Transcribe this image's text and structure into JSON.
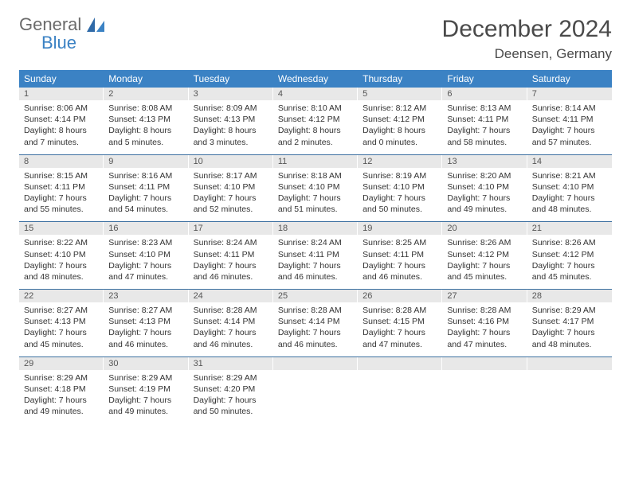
{
  "logo": {
    "general": "General",
    "blue": "Blue"
  },
  "title": "December 2024",
  "location": "Deensen, Germany",
  "colors": {
    "header_bg": "#3b82c4",
    "daynum_bg": "#e8e8e8",
    "week_divider": "#3b6fa0",
    "text": "#333333",
    "title_text": "#4a4a4a"
  },
  "dow": [
    "Sunday",
    "Monday",
    "Tuesday",
    "Wednesday",
    "Thursday",
    "Friday",
    "Saturday"
  ],
  "weeks": [
    [
      {
        "n": "1",
        "sr": "8:06 AM",
        "ss": "4:14 PM",
        "dl": "8 hours and 7 minutes."
      },
      {
        "n": "2",
        "sr": "8:08 AM",
        "ss": "4:13 PM",
        "dl": "8 hours and 5 minutes."
      },
      {
        "n": "3",
        "sr": "8:09 AM",
        "ss": "4:13 PM",
        "dl": "8 hours and 3 minutes."
      },
      {
        "n": "4",
        "sr": "8:10 AM",
        "ss": "4:12 PM",
        "dl": "8 hours and 2 minutes."
      },
      {
        "n": "5",
        "sr": "8:12 AM",
        "ss": "4:12 PM",
        "dl": "8 hours and 0 minutes."
      },
      {
        "n": "6",
        "sr": "8:13 AM",
        "ss": "4:11 PM",
        "dl": "7 hours and 58 minutes."
      },
      {
        "n": "7",
        "sr": "8:14 AM",
        "ss": "4:11 PM",
        "dl": "7 hours and 57 minutes."
      }
    ],
    [
      {
        "n": "8",
        "sr": "8:15 AM",
        "ss": "4:11 PM",
        "dl": "7 hours and 55 minutes."
      },
      {
        "n": "9",
        "sr": "8:16 AM",
        "ss": "4:11 PM",
        "dl": "7 hours and 54 minutes."
      },
      {
        "n": "10",
        "sr": "8:17 AM",
        "ss": "4:10 PM",
        "dl": "7 hours and 52 minutes."
      },
      {
        "n": "11",
        "sr": "8:18 AM",
        "ss": "4:10 PM",
        "dl": "7 hours and 51 minutes."
      },
      {
        "n": "12",
        "sr": "8:19 AM",
        "ss": "4:10 PM",
        "dl": "7 hours and 50 minutes."
      },
      {
        "n": "13",
        "sr": "8:20 AM",
        "ss": "4:10 PM",
        "dl": "7 hours and 49 minutes."
      },
      {
        "n": "14",
        "sr": "8:21 AM",
        "ss": "4:10 PM",
        "dl": "7 hours and 48 minutes."
      }
    ],
    [
      {
        "n": "15",
        "sr": "8:22 AM",
        "ss": "4:10 PM",
        "dl": "7 hours and 48 minutes."
      },
      {
        "n": "16",
        "sr": "8:23 AM",
        "ss": "4:10 PM",
        "dl": "7 hours and 47 minutes."
      },
      {
        "n": "17",
        "sr": "8:24 AM",
        "ss": "4:11 PM",
        "dl": "7 hours and 46 minutes."
      },
      {
        "n": "18",
        "sr": "8:24 AM",
        "ss": "4:11 PM",
        "dl": "7 hours and 46 minutes."
      },
      {
        "n": "19",
        "sr": "8:25 AM",
        "ss": "4:11 PM",
        "dl": "7 hours and 46 minutes."
      },
      {
        "n": "20",
        "sr": "8:26 AM",
        "ss": "4:12 PM",
        "dl": "7 hours and 45 minutes."
      },
      {
        "n": "21",
        "sr": "8:26 AM",
        "ss": "4:12 PM",
        "dl": "7 hours and 45 minutes."
      }
    ],
    [
      {
        "n": "22",
        "sr": "8:27 AM",
        "ss": "4:13 PM",
        "dl": "7 hours and 45 minutes."
      },
      {
        "n": "23",
        "sr": "8:27 AM",
        "ss": "4:13 PM",
        "dl": "7 hours and 46 minutes."
      },
      {
        "n": "24",
        "sr": "8:28 AM",
        "ss": "4:14 PM",
        "dl": "7 hours and 46 minutes."
      },
      {
        "n": "25",
        "sr": "8:28 AM",
        "ss": "4:14 PM",
        "dl": "7 hours and 46 minutes."
      },
      {
        "n": "26",
        "sr": "8:28 AM",
        "ss": "4:15 PM",
        "dl": "7 hours and 47 minutes."
      },
      {
        "n": "27",
        "sr": "8:28 AM",
        "ss": "4:16 PM",
        "dl": "7 hours and 47 minutes."
      },
      {
        "n": "28",
        "sr": "8:29 AM",
        "ss": "4:17 PM",
        "dl": "7 hours and 48 minutes."
      }
    ],
    [
      {
        "n": "29",
        "sr": "8:29 AM",
        "ss": "4:18 PM",
        "dl": "7 hours and 49 minutes."
      },
      {
        "n": "30",
        "sr": "8:29 AM",
        "ss": "4:19 PM",
        "dl": "7 hours and 49 minutes."
      },
      {
        "n": "31",
        "sr": "8:29 AM",
        "ss": "4:20 PM",
        "dl": "7 hours and 50 minutes."
      },
      {
        "empty": true
      },
      {
        "empty": true
      },
      {
        "empty": true
      },
      {
        "empty": true
      }
    ]
  ],
  "labels": {
    "sunrise": "Sunrise: ",
    "sunset": "Sunset: ",
    "daylight": "Daylight: "
  }
}
